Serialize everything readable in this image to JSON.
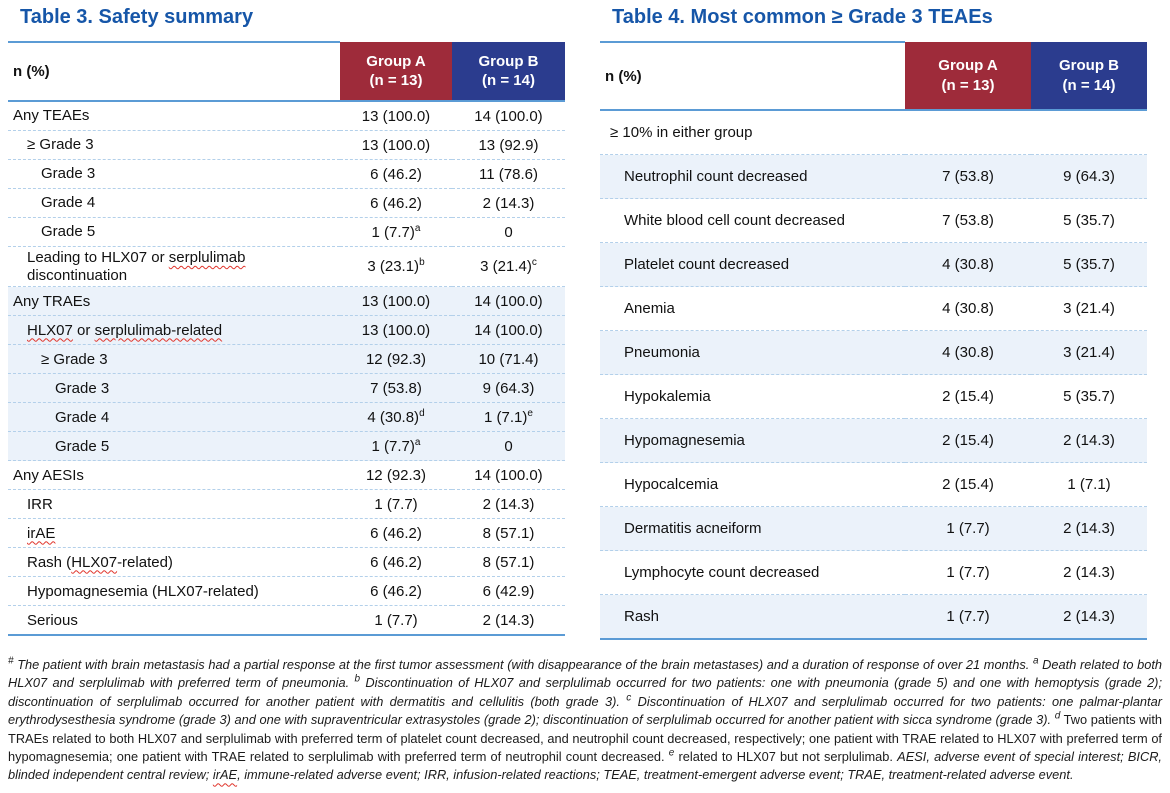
{
  "colors": {
    "title": "#1656A8",
    "line": "#5B9BD5",
    "sep": "#B3D0EA",
    "maroon": "#9E2B3A",
    "navy": "#2B3C8E",
    "shade": "#EBF2FA",
    "squiggle": "#E0342B"
  },
  "table3": {
    "title": "Table 3. Safety summary",
    "header": {
      "label": "n (%)",
      "group_a_line1": "Group A",
      "group_a_line2": "(n = 13)",
      "group_b_line1": "Group B",
      "group_b_line2": "(n = 14)"
    },
    "rows": [
      {
        "level": 0,
        "parts": [
          {
            "t": "Any TEAEs"
          }
        ],
        "a": "13 (100.0)",
        "b": "14 (100.0)"
      },
      {
        "level": 1,
        "parts": [
          {
            "t": "≥ Grade 3"
          }
        ],
        "a": "13 (100.0)",
        "b": "13 (92.9)"
      },
      {
        "level": 2,
        "parts": [
          {
            "t": "Grade 3"
          }
        ],
        "a": "6 (46.2)",
        "b": "11 (78.6)"
      },
      {
        "level": 2,
        "parts": [
          {
            "t": "Grade 4"
          }
        ],
        "a": "6 (46.2)",
        "b": "2 (14.3)"
      },
      {
        "level": 2,
        "parts": [
          {
            "t": "Grade 5"
          }
        ],
        "a": "1 (7.7)",
        "a_sup": "a",
        "b": "0"
      },
      {
        "level": 1,
        "parts": [
          {
            "t": "Leading to HLX07 or "
          },
          {
            "t": "serplulimab",
            "sq": true
          },
          {
            "t": " discontinuation"
          }
        ],
        "a": "3 (23.1)",
        "a_sup": "b",
        "b": "3 (21.4)",
        "b_sup": "c"
      },
      {
        "level": 0,
        "shade": true,
        "parts": [
          {
            "t": "Any TRAEs"
          }
        ],
        "a": "13 (100.0)",
        "b": "14 (100.0)"
      },
      {
        "level": 1,
        "shade": true,
        "parts": [
          {
            "t": "HLX07",
            "sq": true
          },
          {
            "t": " or "
          },
          {
            "t": "serplulimab-related",
            "sq": true
          }
        ],
        "a": "13 (100.0)",
        "b": "14 (100.0)"
      },
      {
        "level": 2,
        "shade": true,
        "parts": [
          {
            "t": "≥ Grade 3"
          }
        ],
        "a": "12 (92.3)",
        "b": "10 (71.4)"
      },
      {
        "level": 3,
        "shade": true,
        "parts": [
          {
            "t": "Grade 3"
          }
        ],
        "a": "7 (53.8)",
        "b": "9 (64.3)"
      },
      {
        "level": 3,
        "shade": true,
        "parts": [
          {
            "t": "Grade 4"
          }
        ],
        "a": "4 (30.8)",
        "a_sup": "d",
        "b": "1 (7.1)",
        "b_sup": "e"
      },
      {
        "level": 3,
        "shade": true,
        "parts": [
          {
            "t": "Grade 5"
          }
        ],
        "a": "1 (7.7)",
        "a_sup": "a",
        "b": "0"
      },
      {
        "level": 0,
        "parts": [
          {
            "t": "Any AESIs"
          }
        ],
        "a": "12 (92.3)",
        "b": "14 (100.0)"
      },
      {
        "level": 1,
        "parts": [
          {
            "t": "IRR"
          }
        ],
        "a": "1 (7.7)",
        "b": "2 (14.3)"
      },
      {
        "level": 1,
        "parts": [
          {
            "t": "irAE",
            "sq": true
          }
        ],
        "a": "6 (46.2)",
        "b": "8 (57.1)"
      },
      {
        "level": 1,
        "parts": [
          {
            "t": "Rash ("
          },
          {
            "t": "HLX07",
            "sq": true
          },
          {
            "t": "-related)"
          }
        ],
        "a": "6 (46.2)",
        "b": "8 (57.1)"
      },
      {
        "level": 1,
        "parts": [
          {
            "t": "Hypomagnesemia (HLX07-related)"
          }
        ],
        "a": "6 (46.2)",
        "b": "6 (42.9)"
      },
      {
        "level": 1,
        "parts": [
          {
            "t": "Serious"
          }
        ],
        "a": "1 (7.7)",
        "b": "2 (14.3)"
      }
    ]
  },
  "table4": {
    "title": "Table 4. Most common ≥ Grade 3 TEAEs",
    "header": {
      "label": "n (%)",
      "group_a_line1": "Group A",
      "group_a_line2": "(n = 13)",
      "group_b_line1": "Group B",
      "group_b_line2": "(n = 14)"
    },
    "rows": [
      {
        "level": 0,
        "span": true,
        "parts": [
          {
            "t": "≥ 10% in either group"
          }
        ]
      },
      {
        "level": 1,
        "shade": true,
        "parts": [
          {
            "t": "Neutrophil count decreased"
          }
        ],
        "a": "7 (53.8)",
        "b": "9 (64.3)"
      },
      {
        "level": 1,
        "parts": [
          {
            "t": "White blood cell count decreased"
          }
        ],
        "a": "7 (53.8)",
        "b": "5 (35.7)"
      },
      {
        "level": 1,
        "shade": true,
        "parts": [
          {
            "t": "Platelet count decreased"
          }
        ],
        "a": "4 (30.8)",
        "b": "5 (35.7)"
      },
      {
        "level": 1,
        "parts": [
          {
            "t": "Anemia"
          }
        ],
        "a": "4 (30.8)",
        "b": "3 (21.4)"
      },
      {
        "level": 1,
        "shade": true,
        "parts": [
          {
            "t": "Pneumonia"
          }
        ],
        "a": "4 (30.8)",
        "b": "3 (21.4)"
      },
      {
        "level": 1,
        "parts": [
          {
            "t": "Hypokalemia"
          }
        ],
        "a": "2 (15.4)",
        "b": "5 (35.7)"
      },
      {
        "level": 1,
        "shade": true,
        "parts": [
          {
            "t": "Hypomagnesemia"
          }
        ],
        "a": "2 (15.4)",
        "b": "2 (14.3)"
      },
      {
        "level": 1,
        "parts": [
          {
            "t": "Hypocalcemia"
          }
        ],
        "a": "2 (15.4)",
        "b": "1 (7.1)"
      },
      {
        "level": 1,
        "shade": true,
        "parts": [
          {
            "t": "Dermatitis acneiform"
          }
        ],
        "a": "1 (7.7)",
        "b": "2 (14.3)"
      },
      {
        "level": 1,
        "parts": [
          {
            "t": "Lymphocyte count decreased"
          }
        ],
        "a": "1 (7.7)",
        "b": "2 (14.3)"
      },
      {
        "level": 1,
        "shade": true,
        "parts": [
          {
            "t": "Rash"
          }
        ],
        "a": "1 (7.7)",
        "b": "2 (14.3)"
      }
    ]
  },
  "footnote": {
    "segments": [
      {
        "sup": true,
        "i": true,
        "t": "#"
      },
      {
        "i": true,
        "t": " The patient with brain metastasis had a partial response at the first tumor assessment (with disappearance of the brain metastases) and a duration of response of over 21 months. "
      },
      {
        "sup": true,
        "i": true,
        "t": "a"
      },
      {
        "i": true,
        "t": " Death related to both HLX07 and serplulimab with preferred term of pneumonia. "
      },
      {
        "sup": true,
        "i": true,
        "t": "b"
      },
      {
        "i": true,
        "t": " Discontinuation of HLX07 and serplulimab occurred for two patients: one with pneumonia (grade 5) and one with hemoptysis (grade 2); discontinuation of serplulimab occurred for another patient with dermatitis and cellulitis (both grade 3). "
      },
      {
        "sup": true,
        "i": true,
        "t": "c"
      },
      {
        "i": true,
        "t": " Discontinuation of HLX07 and serplulimab occurred for two patients: one palmar-plantar erythrodysesthesia syndrome (grade 3) and one with supraventricular extrasystoles (grade 2); discontinuation of serplulimab occurred for another patient with sicca syndrome (grade 3). "
      },
      {
        "sup": true,
        "i": true,
        "t": "d"
      },
      {
        "i": false,
        "t": " Two patients with TRAEs related to both HLX07 and serplulimab with preferred term of platelet count decreased, and neutrophil count decreased, respectively; one patient with TRAE related to HLX07 with preferred term of hypomagnesemia; one patient with TRAE related to serplulimab with preferred term of neutrophil count decreased. "
      },
      {
        "sup": true,
        "i": true,
        "t": "e"
      },
      {
        "i": false,
        "t": " related to HLX07 but not serplulimab. "
      },
      {
        "i": true,
        "t": "AESI, adverse event of special interest; BICR, blinded independent central review; "
      },
      {
        "i": true,
        "sq": true,
        "t": "irAE"
      },
      {
        "i": true,
        "t": ", immune-related adverse event; IRR, infusion-related reactions; TEAE, treatment-emergent adverse event; TRAE, treatment-related adverse event."
      }
    ]
  }
}
